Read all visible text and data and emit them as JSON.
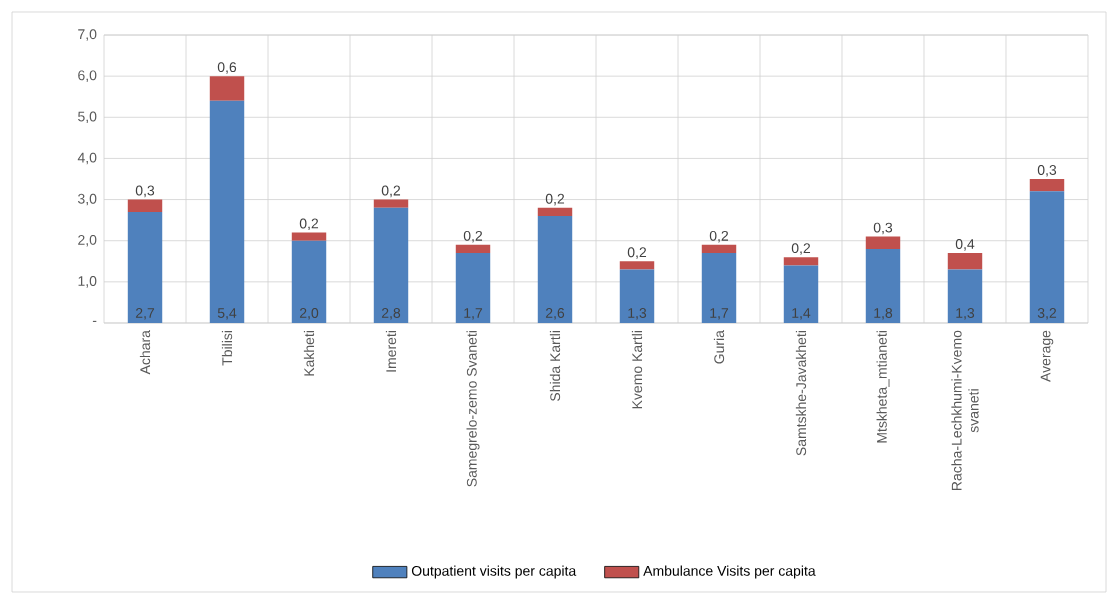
{
  "chart_data": {
    "type": "bar",
    "stacked": true,
    "categories": [
      "Achara",
      "Tbilisi",
      "Kakheti",
      "Imereti",
      "Samegrelo-zemo Svaneti",
      "Shida Kartli",
      "Kvemo Kartli",
      "Guria",
      "Samtskhe-Javakheti",
      "Mtskheta_mtianeti",
      "Racha-Lechkhumi-Kvemo svaneti",
      "Average"
    ],
    "series": [
      {
        "name": "Outpatient visits per capita",
        "color": "#4f81bd",
        "values": [
          2.7,
          5.4,
          2.0,
          2.8,
          1.7,
          2.6,
          1.3,
          1.7,
          1.4,
          1.8,
          1.3,
          3.2
        ],
        "value_labels": [
          "2,7",
          "5,4",
          "2,0",
          "2,8",
          "1,7",
          "2,6",
          "1,3",
          "1,7",
          "1,4",
          "1,8",
          "1,3",
          "3,2"
        ]
      },
      {
        "name": "Ambulance Visits per capita",
        "color": "#c0504d",
        "values": [
          0.3,
          0.6,
          0.2,
          0.2,
          0.2,
          0.2,
          0.2,
          0.2,
          0.2,
          0.3,
          0.4,
          0.3
        ],
        "value_labels": [
          "0,3",
          "0,6",
          "0,2",
          "0,2",
          "0,2",
          "0,2",
          "0,2",
          "0,2",
          "0,2",
          "0,3",
          "0,4",
          "0,3"
        ]
      }
    ],
    "ylim": [
      0,
      7
    ],
    "yticks": [
      {
        "value": 0,
        "label": "-"
      },
      {
        "value": 1,
        "label": "1,0"
      },
      {
        "value": 2,
        "label": "2,0"
      },
      {
        "value": 3,
        "label": "3,0"
      },
      {
        "value": 4,
        "label": "4,0"
      },
      {
        "value": 5,
        "label": "5,0"
      },
      {
        "value": 6,
        "label": "6,0"
      },
      {
        "value": 7,
        "label": "7,0"
      }
    ],
    "grid": true,
    "legend": "bottom"
  }
}
